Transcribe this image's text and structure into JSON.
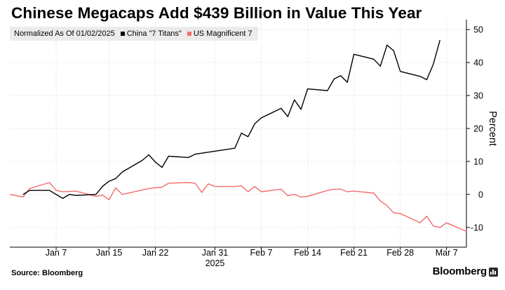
{
  "title": "Chinese Megacaps Add $439 Billion in Value This Year",
  "legend": {
    "label": "Normalized As Of 01/02/2025",
    "entries": [
      {
        "name": "China \"7 Titans\"",
        "color": "#000000"
      },
      {
        "name": "US Magnificent 7",
        "color": "#f26c6c"
      }
    ]
  },
  "source": "Source: Bloomberg",
  "brand": "Bloomberg",
  "brand_icon": "bloomberg-terminal-icon",
  "chart_data": {
    "type": "line",
    "ylabel": "Percent",
    "ylim": [
      -16,
      53
    ],
    "yticks": [
      -10,
      0,
      10,
      20,
      30,
      40,
      50
    ],
    "xlim": [
      "2024-12-31",
      "2025-03-10"
    ],
    "xticks": [
      {
        "date": "2025-01-07",
        "label": "Jan 7"
      },
      {
        "date": "2025-01-15",
        "label": "Jan 15"
      },
      {
        "date": "2025-01-22",
        "label": "Jan 22"
      },
      {
        "date": "2025-01-31",
        "label": "Jan 31"
      },
      {
        "date": "2025-02-07",
        "label": "Feb 7"
      },
      {
        "date": "2025-02-14",
        "label": "Feb 14"
      },
      {
        "date": "2025-02-21",
        "label": "Feb 21"
      },
      {
        "date": "2025-02-28",
        "label": "Feb 28"
      },
      {
        "date": "2025-03-07",
        "label": "Mar 7"
      }
    ],
    "year_label": "2025",
    "grid": true,
    "legend_position": "top-left",
    "series": [
      {
        "name": "China \"7 Titans\"",
        "color": "#000000",
        "points": [
          [
            "2025-01-02",
            0
          ],
          [
            "2025-01-03",
            1.2
          ],
          [
            "2025-01-06",
            1.2
          ],
          [
            "2025-01-07",
            0
          ],
          [
            "2025-01-08",
            -1.2
          ],
          [
            "2025-01-09",
            0
          ],
          [
            "2025-01-10",
            -0.3
          ],
          [
            "2025-01-13",
            0
          ],
          [
            "2025-01-14",
            2.4
          ],
          [
            "2025-01-15",
            4
          ],
          [
            "2025-01-16",
            4.8
          ],
          [
            "2025-01-17",
            6.8
          ],
          [
            "2025-01-20",
            10.3
          ],
          [
            "2025-01-21",
            12
          ],
          [
            "2025-01-22",
            9.8
          ],
          [
            "2025-01-23",
            8.2
          ],
          [
            "2025-01-24",
            11.6
          ],
          [
            "2025-01-27",
            11.2
          ],
          [
            "2025-01-28",
            12.2
          ],
          [
            "2025-02-03",
            14
          ],
          [
            "2025-02-04",
            18.6
          ],
          [
            "2025-02-05",
            17.5
          ],
          [
            "2025-02-06",
            21.4
          ],
          [
            "2025-02-07",
            23.2
          ],
          [
            "2025-02-10",
            26.1
          ],
          [
            "2025-02-11",
            23.6
          ],
          [
            "2025-02-12",
            28.7
          ],
          [
            "2025-02-13",
            25.8
          ],
          [
            "2025-02-14",
            32
          ],
          [
            "2025-02-17",
            31.5
          ],
          [
            "2025-02-18",
            35
          ],
          [
            "2025-02-19",
            36
          ],
          [
            "2025-02-20",
            34
          ],
          [
            "2025-02-21",
            42.5
          ],
          [
            "2025-02-24",
            41
          ],
          [
            "2025-02-25",
            38.9
          ],
          [
            "2025-02-26",
            45.3
          ],
          [
            "2025-02-27",
            43.6
          ],
          [
            "2025-02-28",
            37.3
          ],
          [
            "2025-03-03",
            35.8
          ],
          [
            "2025-03-04",
            34.8
          ],
          [
            "2025-03-05",
            39.5
          ],
          [
            "2025-03-06",
            46.8
          ]
        ]
      },
      {
        "name": "US Magnificent 7",
        "color": "#f26c6c",
        "points": [
          [
            "2024-12-31",
            0
          ],
          [
            "2025-01-02",
            -0.8
          ],
          [
            "2025-01-03",
            1.8
          ],
          [
            "2025-01-06",
            3.6
          ],
          [
            "2025-01-07",
            1.2
          ],
          [
            "2025-01-08",
            0.8
          ],
          [
            "2025-01-10",
            1
          ],
          [
            "2025-01-13",
            -0.6
          ],
          [
            "2025-01-14",
            -0.2
          ],
          [
            "2025-01-15",
            -1.6
          ],
          [
            "2025-01-16",
            2
          ],
          [
            "2025-01-17",
            0
          ],
          [
            "2025-01-21",
            1.8
          ],
          [
            "2025-01-22",
            2
          ],
          [
            "2025-01-23",
            2.2
          ],
          [
            "2025-01-24",
            3.4
          ],
          [
            "2025-01-27",
            3.6
          ],
          [
            "2025-01-28",
            3.4
          ],
          [
            "2025-01-29",
            0.6
          ],
          [
            "2025-01-30",
            3.2
          ],
          [
            "2025-01-31",
            2.4
          ],
          [
            "2025-02-03",
            2.4
          ],
          [
            "2025-02-04",
            2.6
          ],
          [
            "2025-02-05",
            0.8
          ],
          [
            "2025-02-06",
            2.4
          ],
          [
            "2025-02-07",
            0.8
          ],
          [
            "2025-02-10",
            1.6
          ],
          [
            "2025-02-11",
            -0.4
          ],
          [
            "2025-02-12",
            0
          ],
          [
            "2025-02-13",
            -0.8
          ],
          [
            "2025-02-14",
            -0.6
          ],
          [
            "2025-02-17",
            1.2
          ],
          [
            "2025-02-18",
            1.6
          ],
          [
            "2025-02-19",
            1.6
          ],
          [
            "2025-02-20",
            0.8
          ],
          [
            "2025-02-21",
            1
          ],
          [
            "2025-02-24",
            0.4
          ],
          [
            "2025-02-25",
            -2
          ],
          [
            "2025-02-26",
            -3.4
          ],
          [
            "2025-02-27",
            -5.6
          ],
          [
            "2025-02-28",
            -5.8
          ],
          [
            "2025-03-03",
            -8.6
          ],
          [
            "2025-03-04",
            -6.6
          ],
          [
            "2025-03-05",
            -9.6
          ],
          [
            "2025-03-06",
            -10
          ],
          [
            "2025-03-07",
            -8.6
          ],
          [
            "2025-03-10",
            -11.2
          ]
        ]
      }
    ]
  }
}
